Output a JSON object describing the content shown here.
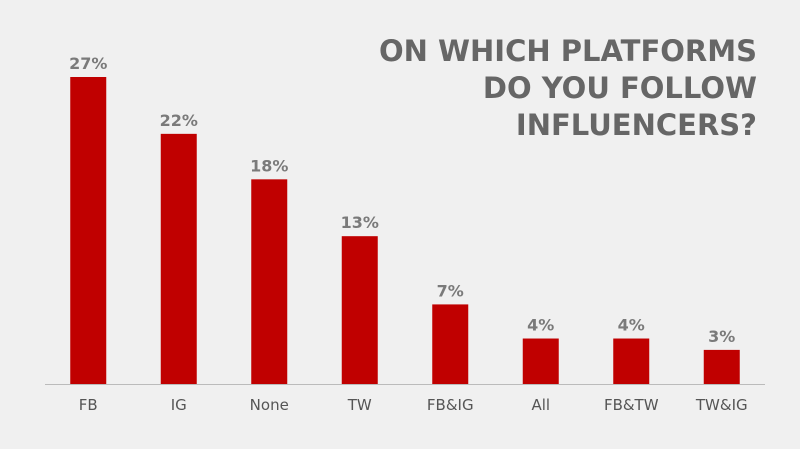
{
  "chart_data": {
    "type": "bar",
    "title": [
      "ON WHICH PLATFORMS",
      "DO YOU FOLLOW",
      "INFLUENCERS?"
    ],
    "categories": [
      "FB",
      "IG",
      "None",
      "TW",
      "FB&IG",
      "All",
      "FB&TW",
      "TW&IG"
    ],
    "values": [
      27,
      22,
      18,
      13,
      7,
      4,
      4,
      3
    ],
    "value_labels": [
      "27%",
      "22%",
      "18%",
      "13%",
      "7%",
      "4%",
      "4%",
      "3%"
    ],
    "color": "#c00000"
  }
}
